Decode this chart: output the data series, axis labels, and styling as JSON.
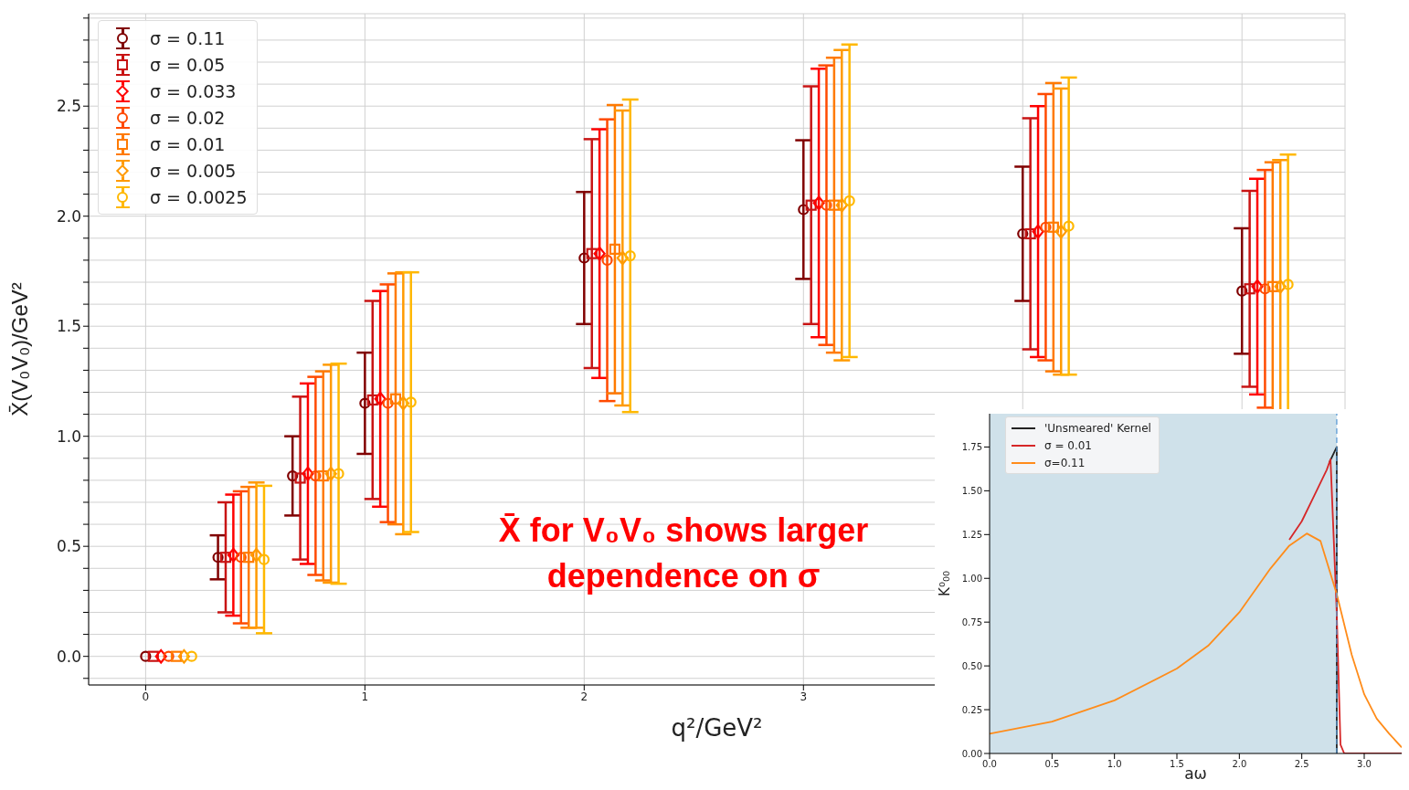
{
  "chart_data": [
    {
      "type": "scatter",
      "xlabel": "q²/GeV²",
      "ylabel": "X̄(V₀V₀)/GeV²",
      "xlim": [
        -0.26,
        5.47
      ],
      "ylim": [
        -0.13,
        2.92
      ],
      "xticks": [
        0,
        1,
        2,
        3,
        {
          "value": 4,
          "label": null
        },
        {
          "value": 5,
          "label": null
        }
      ],
      "yticks": [
        {
          "value": -0.1,
          "label": null
        },
        {
          "value": 0,
          "label": "0.0"
        },
        {
          "value": 0.1,
          "label": null
        },
        {
          "value": 0.2,
          "label": null
        },
        {
          "value": 0.3,
          "label": null
        },
        {
          "value": 0.4,
          "label": null
        },
        {
          "value": 0.5,
          "label": "0.5"
        },
        {
          "value": 0.6,
          "label": null
        },
        {
          "value": 0.7,
          "label": null
        },
        {
          "value": 0.8,
          "label": null
        },
        {
          "value": 0.9,
          "label": null
        },
        {
          "value": 1.0,
          "label": "1.0"
        },
        {
          "value": 1.1,
          "label": null
        },
        {
          "value": 1.2,
          "label": null
        },
        {
          "value": 1.3,
          "label": null
        },
        {
          "value": 1.4,
          "label": null
        },
        {
          "value": 1.5,
          "label": "1.5"
        },
        {
          "value": 1.6,
          "label": null
        },
        {
          "value": 1.7,
          "label": null
        },
        {
          "value": 1.8,
          "label": null
        },
        {
          "value": 1.9,
          "label": null
        },
        {
          "value": 2.0,
          "label": "2.0"
        },
        {
          "value": 2.1,
          "label": null
        },
        {
          "value": 2.2,
          "label": null
        },
        {
          "value": 2.3,
          "label": null
        },
        {
          "value": 2.4,
          "label": null
        },
        {
          "value": 2.5,
          "label": "2.5"
        },
        {
          "value": 2.6,
          "label": null
        },
        {
          "value": 2.7,
          "label": null
        },
        {
          "value": 2.8,
          "label": null
        },
        {
          "value": 2.9,
          "label": null
        }
      ],
      "grid": true,
      "legend": "top left",
      "annotations": [
        "X̄  for V₀V₀ shows larger dependence on σ"
      ],
      "series": [
        {
          "name": "σ = 0.11",
          "color": "#800000",
          "marker": "circle",
          "x": [
            0,
            0.33,
            0.67,
            1.0,
            2.0,
            3.0,
            4.0,
            5.0
          ],
          "values": [
            0,
            0.45,
            0.82,
            1.15,
            1.81,
            2.03,
            1.92,
            1.66
          ],
          "errors": [
            null,
            0.1,
            0.18,
            0.23,
            0.3,
            0.315,
            0.305,
            0.285
          ]
        },
        {
          "name": "σ = 0.05",
          "color": "#c81414",
          "marker": "square",
          "x": [
            0.035,
            0.365,
            0.705,
            1.035,
            2.035,
            3.035,
            4.035,
            5.035
          ],
          "values": [
            0,
            0.45,
            0.81,
            1.165,
            1.83,
            2.05,
            1.92,
            1.67
          ],
          "errors": [
            null,
            0.25,
            0.37,
            0.45,
            0.52,
            0.54,
            0.525,
            0.445
          ]
        },
        {
          "name": "σ = 0.033",
          "color": "#ff0000",
          "marker": "diamond",
          "x": [
            0.07,
            0.4,
            0.74,
            1.07,
            2.07,
            3.07,
            4.07,
            5.07
          ],
          "values": [
            0,
            0.46,
            0.83,
            1.17,
            1.83,
            2.06,
            1.93,
            1.68
          ],
          "errors": [
            null,
            0.275,
            0.41,
            0.49,
            0.565,
            0.61,
            0.57,
            0.49
          ]
        },
        {
          "name": "σ = 0.02",
          "color": "#ff4a00",
          "marker": "circle",
          "x": [
            0.105,
            0.435,
            0.775,
            1.105,
            2.105,
            3.105,
            4.105,
            5.105
          ],
          "values": [
            0,
            0.45,
            0.82,
            1.15,
            1.8,
            2.05,
            1.95,
            1.67
          ],
          "errors": [
            null,
            0.3,
            0.45,
            0.54,
            0.64,
            0.635,
            0.605,
            0.54
          ]
        },
        {
          "name": "σ = 0.01",
          "color": "#ff7a00",
          "marker": "square",
          "x": [
            0.14,
            0.47,
            0.81,
            1.14,
            2.14,
            3.14,
            4.14,
            5.14
          ],
          "values": [
            0,
            0.45,
            0.82,
            1.17,
            1.85,
            2.05,
            1.95,
            1.68
          ],
          "errors": [
            null,
            0.32,
            0.475,
            0.57,
            0.655,
            0.67,
            0.655,
            0.565
          ]
        },
        {
          "name": "σ = 0.005",
          "color": "#ff9a00",
          "marker": "diamond",
          "x": [
            0.175,
            0.505,
            0.845,
            1.175,
            2.175,
            3.175,
            4.175,
            5.175
          ],
          "values": [
            0,
            0.46,
            0.83,
            1.15,
            1.81,
            2.05,
            1.93,
            1.68
          ],
          "errors": [
            null,
            0.33,
            0.495,
            0.595,
            0.67,
            0.705,
            0.65,
            0.575
          ]
        },
        {
          "name": "σ = 0.0025",
          "color": "#ffb800",
          "marker": "circle",
          "x": [
            0.21,
            0.54,
            0.88,
            1.21,
            2.21,
            3.21,
            4.21,
            5.21
          ],
          "values": [
            0,
            0.44,
            0.83,
            1.155,
            1.82,
            2.07,
            1.955,
            1.69
          ],
          "errors": [
            null,
            0.335,
            0.5,
            0.59,
            0.71,
            0.71,
            0.675,
            0.59
          ]
        }
      ]
    },
    {
      "type": "line",
      "xlabel": "aω",
      "ylabel": "K⁰₀₀",
      "xlim": [
        0,
        3.3
      ],
      "ylim": [
        0,
        1.94
      ],
      "xticks": [
        {
          "value": 0,
          "label": "0.0"
        },
        {
          "value": 0.5,
          "label": "0.5"
        },
        {
          "value": 1,
          "label": "1.0"
        },
        {
          "value": 1.5,
          "label": "1.5"
        },
        {
          "value": 2,
          "label": "2.0"
        },
        {
          "value": 2.5,
          "label": "2.5"
        },
        {
          "value": 3,
          "label": "3.0"
        }
      ],
      "yticks": [
        {
          "value": 0,
          "label": "0.00"
        },
        {
          "value": 0.25,
          "label": "0.25"
        },
        {
          "value": 0.5,
          "label": "0.50"
        },
        {
          "value": 0.75,
          "label": "0.75"
        },
        {
          "value": 1,
          "label": "1.00"
        },
        {
          "value": 1.25,
          "label": "1.25"
        },
        {
          "value": 1.5,
          "label": "1.50"
        },
        {
          "value": 1.75,
          "label": "1.75"
        }
      ],
      "legend": "top left",
      "marker": "none",
      "line_style": "solid",
      "bands": [
        {
          "axis": "x",
          "from": 0,
          "to": 2.78,
          "color": "#cfe1ea"
        }
      ],
      "ref_lines": [
        {
          "axis": "x",
          "value": 2.78,
          "color": "#5b9bd5",
          "line_style": "dashed"
        }
      ],
      "series": [
        {
          "name": "'Unsmeared' Kernel",
          "color": "#222222",
          "x": [
            2.72,
            2.78,
            2.78
          ],
          "values": [
            1.66,
            1.75,
            0
          ]
        },
        {
          "name": "σ = 0.01",
          "color": "#d62728",
          "x": [
            2.4,
            2.5,
            2.6,
            2.7,
            2.73,
            2.78,
            2.81,
            2.84,
            3.3
          ],
          "values": [
            1.22,
            1.326,
            1.473,
            1.62,
            1.68,
            0.8,
            0.05,
            0,
            0
          ]
        },
        {
          "name": "σ=0.11",
          "color": "#ff8c1a",
          "x": [
            0,
            0.5,
            1,
            1.5,
            1.75,
            2,
            2.25,
            2.4,
            2.54,
            2.65,
            2.78,
            2.9,
            3.0,
            3.1,
            3.2,
            3.3
          ],
          "values": [
            0.113,
            0.182,
            0.303,
            0.485,
            0.615,
            0.806,
            1.057,
            1.187,
            1.256,
            1.213,
            0.91,
            0.563,
            0.338,
            0.199,
            0.113,
            0.035
          ]
        }
      ]
    }
  ]
}
